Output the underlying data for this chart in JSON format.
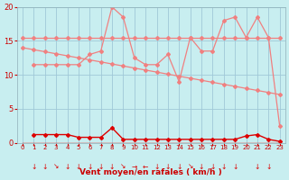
{
  "background_color": "#c8eef0",
  "grid_color": "#a0c8d8",
  "line_color_light": "#f08080",
  "line_color_dark": "#dd0000",
  "xlabel": "Vent moyen/en rafales ( km/h )",
  "xlabel_color": "#cc0000",
  "tick_color": "#cc0000",
  "xlim": [
    -0.5,
    23.5
  ],
  "ylim": [
    0,
    20
  ],
  "yticks": [
    0,
    5,
    10,
    15,
    20
  ],
  "series": {
    "flat_x": [
      0,
      1,
      2,
      3,
      4,
      5,
      6,
      7,
      8,
      9,
      10,
      11,
      12,
      13,
      14,
      15,
      16,
      17,
      18,
      19,
      20,
      21,
      22,
      23
    ],
    "flat_y": [
      15.5,
      15.5,
      15.5,
      15.5,
      15.5,
      15.5,
      15.5,
      15.5,
      15.5,
      15.5,
      15.5,
      15.5,
      15.5,
      15.5,
      15.5,
      15.5,
      15.5,
      15.5,
      15.5,
      15.5,
      15.5,
      15.5,
      15.5,
      15.5
    ],
    "trend_x": [
      0,
      1,
      2,
      3,
      4,
      5,
      6,
      7,
      8,
      9,
      10,
      11,
      12,
      13,
      14,
      15,
      16,
      17,
      18,
      19,
      20,
      21,
      22,
      23
    ],
    "trend_y": [
      14.0,
      13.7,
      13.4,
      13.1,
      12.8,
      12.5,
      12.2,
      11.9,
      11.6,
      11.3,
      11.0,
      10.7,
      10.4,
      10.1,
      9.8,
      9.5,
      9.2,
      8.9,
      8.6,
      8.3,
      8.0,
      7.7,
      7.4,
      7.1
    ],
    "gust_x": [
      1,
      2,
      3,
      4,
      5,
      6,
      7,
      8,
      9,
      10,
      11,
      12,
      13,
      14,
      15,
      16,
      17,
      18,
      19,
      20,
      21,
      22,
      23
    ],
    "gust_y": [
      11.5,
      11.5,
      11.5,
      11.5,
      11.5,
      13.0,
      13.5,
      20.0,
      18.5,
      12.5,
      11.5,
      11.5,
      13.0,
      9.0,
      15.5,
      13.5,
      13.5,
      18.0,
      18.5,
      15.5,
      18.5,
      15.5,
      2.5
    ],
    "mean_x": [
      1,
      2,
      3,
      4,
      5,
      6,
      7,
      8,
      9,
      10,
      11,
      12,
      13,
      14,
      15,
      16,
      17,
      18,
      19,
      20,
      21,
      22,
      23
    ],
    "mean_y": [
      1.2,
      1.2,
      1.2,
      1.2,
      0.8,
      0.8,
      0.8,
      2.2,
      0.5,
      0.5,
      0.5,
      0.5,
      0.5,
      0.5,
      0.5,
      0.5,
      0.5,
      0.5,
      0.5,
      1.0,
      1.2,
      0.5,
      0.2
    ],
    "zero_x": [
      0,
      1,
      2,
      3,
      4,
      5,
      6,
      7,
      8,
      9,
      10,
      11,
      12,
      13,
      14,
      15,
      16,
      17,
      18,
      19,
      20,
      21,
      22,
      23
    ],
    "zero_y": [
      0,
      0,
      0,
      0,
      0,
      0,
      0,
      0,
      0,
      0,
      0,
      0,
      0,
      0,
      0,
      0,
      0,
      0,
      0,
      0,
      0,
      0,
      0,
      0
    ]
  },
  "arrows_x": [
    1,
    2,
    3,
    4,
    5,
    6,
    7,
    8,
    9,
    10,
    11,
    12,
    13,
    14,
    15,
    16,
    17,
    18,
    19,
    21,
    22
  ],
  "arrow_syms": [
    "↓",
    "↓",
    "↘",
    "↓",
    "↓",
    "↓",
    "↓",
    "↓",
    "↘",
    "→",
    "←",
    "↓",
    "↓",
    "↓",
    "↘",
    "↓",
    "↓",
    "↓",
    "↓",
    "↓",
    "↓"
  ]
}
